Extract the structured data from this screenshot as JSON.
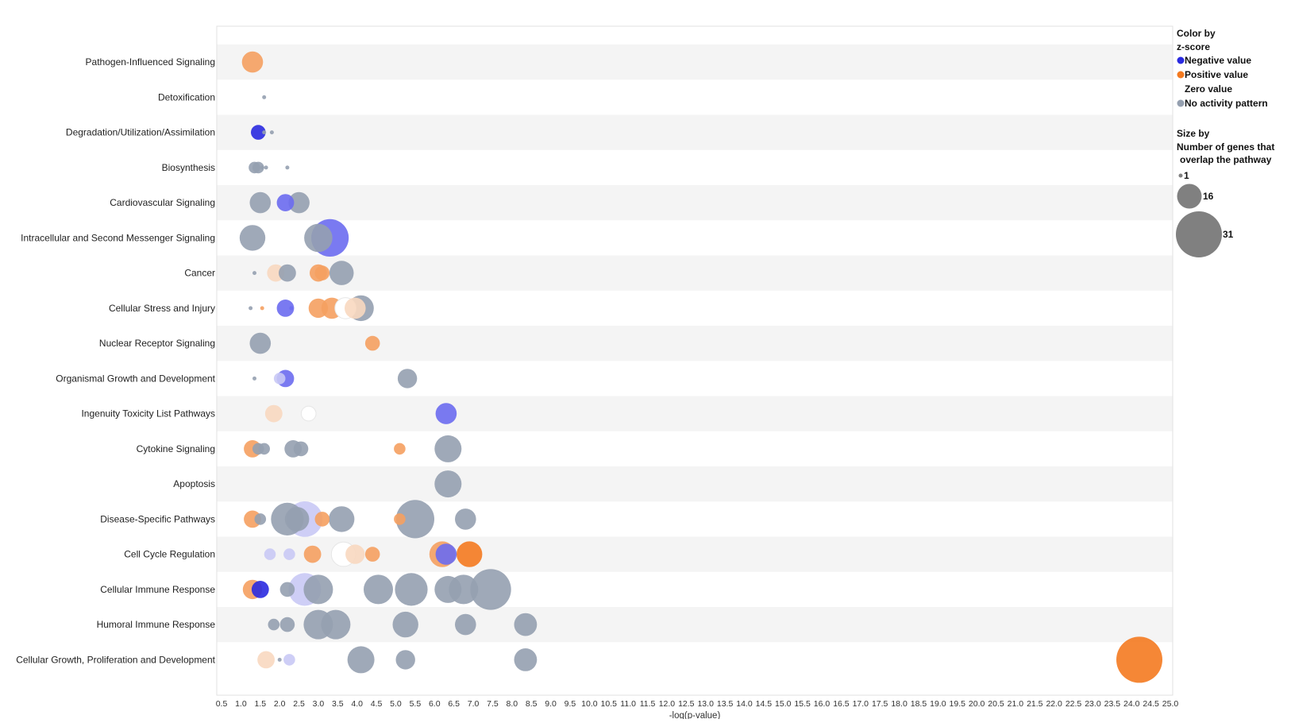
{
  "chart_data": {
    "type": "scatter",
    "subtype": "bubble",
    "xlabel": "-log(p-value)",
    "ylabel": "",
    "xlim": [
      0.5,
      25.0
    ],
    "x_ticks": [
      "0.5",
      "1.0",
      "1.5",
      "2.0",
      "2.5",
      "3.0",
      "3.5",
      "4.0",
      "4.5",
      "5.0",
      "5.5",
      "6.0",
      "6.5",
      "7.0",
      "7.5",
      "8.0",
      "8.5",
      "9.0",
      "9.5",
      "10.0",
      "10.5",
      "11.0",
      "11.5",
      "12.0",
      "12.5",
      "13.0",
      "13.5",
      "14.0",
      "14.5",
      "15.0",
      "15.5",
      "16.0",
      "16.5",
      "17.0",
      "17.5",
      "18.0",
      "18.5",
      "19.0",
      "19.5",
      "20.0",
      "20.5",
      "21.0",
      "21.5",
      "22.0",
      "22.5",
      "23.0",
      "23.5",
      "24.0",
      "24.5",
      "25.0"
    ],
    "categories": [
      "Pathogen-Influenced Signaling",
      "Detoxification",
      "Degradation/Utilization/Assimilation",
      "Biosynthesis",
      "Cardiovascular Signaling",
      "Intracellular and Second Messenger Signaling",
      "Cancer",
      "Cellular Stress and Injury",
      "Nuclear Receptor Signaling",
      "Organismal Growth and Development",
      "Ingenuity Toxicity List Pathways",
      "Cytokine Signaling",
      "Apoptosis",
      "Disease-Specific Pathways",
      "Cell Cycle Regulation",
      "Cellular Immune Response",
      "Humoral Immune Response",
      "Cellular Growth, Proliferation and Development"
    ],
    "colors": {
      "negative": "#2a2ae0",
      "negative_light": "#6b6bf0",
      "negative_pale": "#c9c9f5",
      "positive": "#f47a20",
      "positive_light": "#f5a060",
      "positive_pale": "#f8d8c0",
      "zero": "#ffffff",
      "no_activity": "#95a0b0"
    },
    "grid": false,
    "legend_position": "right",
    "legend": {
      "color_title_1": "Color by",
      "color_title_2": "z-score",
      "color_items": [
        {
          "label": "Negative value",
          "color": "#2a2ae0"
        },
        {
          "label": "Positive value",
          "color": "#f47a20"
        },
        {
          "label": "Zero value",
          "color": "#ffffff"
        },
        {
          "label": "No activity pattern",
          "color": "#95a0b0"
        }
      ],
      "size_title_1": "Size by",
      "size_title_2": "Number of genes that",
      "size_title_3": "overlap the pathway",
      "size_items": [
        {
          "label": "1",
          "value": 1
        },
        {
          "label": "16",
          "value": 16
        },
        {
          "label": "31",
          "value": 31
        }
      ]
    },
    "points": [
      {
        "cat": 0,
        "x": 1.3,
        "size": 6,
        "color": "positive_light"
      },
      {
        "cat": 1,
        "x": 1.6,
        "size": 1,
        "color": "no_activity"
      },
      {
        "cat": 2,
        "x": 1.45,
        "size": 3,
        "color": "negative"
      },
      {
        "cat": 2,
        "x": 1.6,
        "size": 1,
        "color": "no_activity"
      },
      {
        "cat": 2,
        "x": 1.8,
        "size": 1,
        "color": "no_activity"
      },
      {
        "cat": 3,
        "x": 1.35,
        "size": 2,
        "color": "no_activity"
      },
      {
        "cat": 3,
        "x": 1.45,
        "size": 2,
        "color": "no_activity"
      },
      {
        "cat": 3,
        "x": 1.55,
        "size": 1,
        "color": "no_activity"
      },
      {
        "cat": 3,
        "x": 1.65,
        "size": 1,
        "color": "no_activity"
      },
      {
        "cat": 3,
        "x": 2.2,
        "size": 1,
        "color": "no_activity"
      },
      {
        "cat": 4,
        "x": 1.5,
        "size": 6,
        "color": "no_activity"
      },
      {
        "cat": 4,
        "x": 2.15,
        "size": 4,
        "color": "negative_light"
      },
      {
        "cat": 4,
        "x": 2.5,
        "size": 6,
        "color": "no_activity"
      },
      {
        "cat": 5,
        "x": 1.3,
        "size": 9,
        "color": "no_activity"
      },
      {
        "cat": 5,
        "x": 3.0,
        "size": 11,
        "color": "no_activity"
      },
      {
        "cat": 5,
        "x": 3.3,
        "size": 20,
        "color": "negative_light"
      },
      {
        "cat": 6,
        "x": 1.35,
        "size": 1,
        "color": "no_activity"
      },
      {
        "cat": 6,
        "x": 1.9,
        "size": 4,
        "color": "positive_pale"
      },
      {
        "cat": 6,
        "x": 2.2,
        "size": 4,
        "color": "no_activity"
      },
      {
        "cat": 6,
        "x": 3.0,
        "size": 4,
        "color": "positive_light"
      },
      {
        "cat": 6,
        "x": 3.1,
        "size": 3,
        "color": "positive_light"
      },
      {
        "cat": 6,
        "x": 3.6,
        "size": 8,
        "color": "no_activity"
      },
      {
        "cat": 7,
        "x": 1.25,
        "size": 1,
        "color": "no_activity"
      },
      {
        "cat": 7,
        "x": 1.55,
        "size": 1,
        "color": "positive_light"
      },
      {
        "cat": 7,
        "x": 2.15,
        "size": 4,
        "color": "negative_light"
      },
      {
        "cat": 7,
        "x": 2.3,
        "size": 1,
        "color": "negative_light"
      },
      {
        "cat": 7,
        "x": 3.0,
        "size": 5,
        "color": "positive_light"
      },
      {
        "cat": 7,
        "x": 3.35,
        "size": 6,
        "color": "positive_light"
      },
      {
        "cat": 7,
        "x": 3.7,
        "size": 6,
        "color": "zero"
      },
      {
        "cat": 7,
        "x": 3.95,
        "size": 6,
        "color": "positive_pale"
      },
      {
        "cat": 7,
        "x": 4.1,
        "size": 9,
        "color": "no_activity"
      },
      {
        "cat": 8,
        "x": 1.5,
        "size": 6,
        "color": "no_activity"
      },
      {
        "cat": 8,
        "x": 4.4,
        "size": 3,
        "color": "positive_light"
      },
      {
        "cat": 9,
        "x": 1.35,
        "size": 1,
        "color": "no_activity"
      },
      {
        "cat": 9,
        "x": 2.0,
        "size": 2,
        "color": "negative_pale"
      },
      {
        "cat": 9,
        "x": 2.15,
        "size": 4,
        "color": "negative_light"
      },
      {
        "cat": 9,
        "x": 5.3,
        "size": 5,
        "color": "no_activity"
      },
      {
        "cat": 10,
        "x": 1.85,
        "size": 4,
        "color": "positive_pale"
      },
      {
        "cat": 10,
        "x": 2.75,
        "size": 3,
        "color": "zero"
      },
      {
        "cat": 10,
        "x": 6.3,
        "size": 6,
        "color": "negative_light"
      },
      {
        "cat": 11,
        "x": 1.3,
        "size": 4,
        "color": "positive_light"
      },
      {
        "cat": 11,
        "x": 1.45,
        "size": 2,
        "color": "no_activity"
      },
      {
        "cat": 11,
        "x": 1.6,
        "size": 2,
        "color": "no_activity"
      },
      {
        "cat": 11,
        "x": 2.35,
        "size": 4,
        "color": "no_activity"
      },
      {
        "cat": 11,
        "x": 2.55,
        "size": 3,
        "color": "no_activity"
      },
      {
        "cat": 11,
        "x": 5.1,
        "size": 2,
        "color": "positive_light"
      },
      {
        "cat": 11,
        "x": 6.35,
        "size": 10,
        "color": "no_activity"
      },
      {
        "cat": 12,
        "x": 6.35,
        "size": 10,
        "color": "no_activity"
      },
      {
        "cat": 13,
        "x": 1.3,
        "size": 4,
        "color": "positive_light"
      },
      {
        "cat": 13,
        "x": 1.5,
        "size": 2,
        "color": "no_activity"
      },
      {
        "cat": 13,
        "x": 2.2,
        "size": 15,
        "color": "no_activity"
      },
      {
        "cat": 13,
        "x": 2.45,
        "size": 8,
        "color": "no_activity"
      },
      {
        "cat": 13,
        "x": 2.65,
        "size": 18,
        "color": "negative_pale"
      },
      {
        "cat": 13,
        "x": 3.1,
        "size": 3,
        "color": "positive_light"
      },
      {
        "cat": 13,
        "x": 3.6,
        "size": 9,
        "color": "no_activity"
      },
      {
        "cat": 13,
        "x": 5.1,
        "size": 2,
        "color": "positive_light"
      },
      {
        "cat": 13,
        "x": 5.5,
        "size": 21,
        "color": "no_activity"
      },
      {
        "cat": 13,
        "x": 6.8,
        "size": 6,
        "color": "no_activity"
      },
      {
        "cat": 14,
        "x": 1.75,
        "size": 2,
        "color": "negative_pale"
      },
      {
        "cat": 14,
        "x": 2.25,
        "size": 2,
        "color": "negative_pale"
      },
      {
        "cat": 14,
        "x": 2.85,
        "size": 4,
        "color": "positive_light"
      },
      {
        "cat": 14,
        "x": 3.65,
        "size": 8,
        "color": "zero"
      },
      {
        "cat": 14,
        "x": 3.95,
        "size": 5,
        "color": "positive_pale"
      },
      {
        "cat": 14,
        "x": 4.4,
        "size": 3,
        "color": "positive_light"
      },
      {
        "cat": 14,
        "x": 6.2,
        "size": 9,
        "color": "positive_light"
      },
      {
        "cat": 14,
        "x": 6.3,
        "size": 6,
        "color": "negative_light"
      },
      {
        "cat": 14,
        "x": 6.9,
        "size": 9,
        "color": "positive"
      },
      {
        "cat": 15,
        "x": 1.3,
        "size": 5,
        "color": "positive_light"
      },
      {
        "cat": 15,
        "x": 1.5,
        "size": 4,
        "color": "negative"
      },
      {
        "cat": 15,
        "x": 2.2,
        "size": 3,
        "color": "no_activity"
      },
      {
        "cat": 15,
        "x": 2.65,
        "size": 15,
        "color": "negative_pale"
      },
      {
        "cat": 15,
        "x": 3.0,
        "size": 12,
        "color": "no_activity"
      },
      {
        "cat": 15,
        "x": 4.55,
        "size": 12,
        "color": "no_activity"
      },
      {
        "cat": 15,
        "x": 5.4,
        "size": 15,
        "color": "no_activity"
      },
      {
        "cat": 15,
        "x": 6.35,
        "size": 10,
        "color": "no_activity"
      },
      {
        "cat": 15,
        "x": 6.75,
        "size": 12,
        "color": "no_activity"
      },
      {
        "cat": 15,
        "x": 7.45,
        "size": 24,
        "color": "no_activity"
      },
      {
        "cat": 16,
        "x": 1.85,
        "size": 2,
        "color": "no_activity"
      },
      {
        "cat": 16,
        "x": 2.2,
        "size": 3,
        "color": "no_activity"
      },
      {
        "cat": 16,
        "x": 3.0,
        "size": 12,
        "color": "no_activity"
      },
      {
        "cat": 16,
        "x": 3.45,
        "size": 12,
        "color": "no_activity"
      },
      {
        "cat": 16,
        "x": 5.25,
        "size": 9,
        "color": "no_activity"
      },
      {
        "cat": 16,
        "x": 6.8,
        "size": 6,
        "color": "no_activity"
      },
      {
        "cat": 16,
        "x": 8.35,
        "size": 7,
        "color": "no_activity"
      },
      {
        "cat": 17,
        "x": 1.65,
        "size": 4,
        "color": "positive_pale"
      },
      {
        "cat": 17,
        "x": 2.0,
        "size": 1,
        "color": "no_activity"
      },
      {
        "cat": 17,
        "x": 2.25,
        "size": 2,
        "color": "negative_pale"
      },
      {
        "cat": 17,
        "x": 4.1,
        "size": 10,
        "color": "no_activity"
      },
      {
        "cat": 17,
        "x": 5.25,
        "size": 5,
        "color": "no_activity"
      },
      {
        "cat": 17,
        "x": 8.35,
        "size": 7,
        "color": "no_activity"
      },
      {
        "cat": 17,
        "x": 24.2,
        "size": 31,
        "color": "positive"
      }
    ]
  }
}
